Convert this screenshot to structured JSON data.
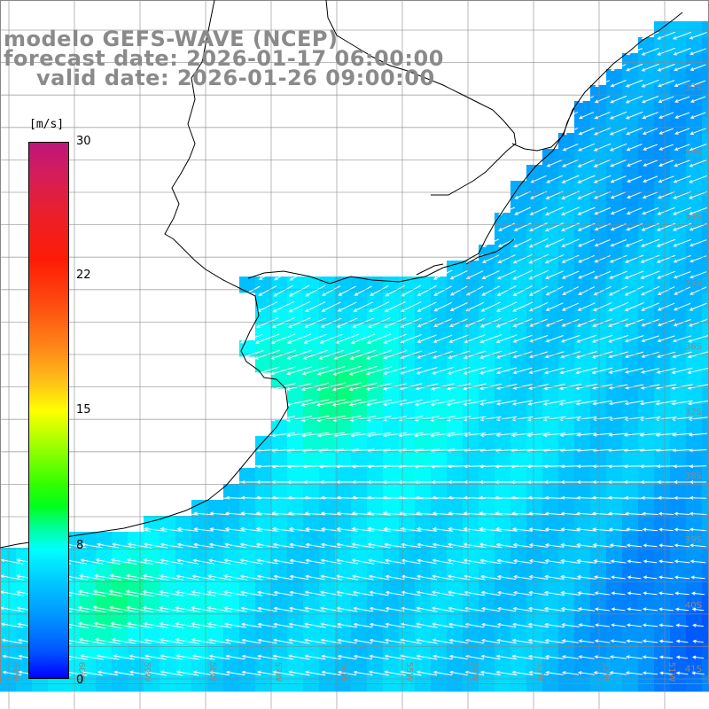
{
  "title": {
    "line1": "modelo GEFS-WAVE (NCEP)",
    "line2": "forecast date: 2026-01-17 06:00:00",
    "line3": "valid date: 2026-01-26 09:00:00"
  },
  "colorbar": {
    "unit": "[m/s]",
    "ticks": [
      "30",
      "22",
      "15",
      "8",
      "0"
    ]
  },
  "lat_labels": [
    "32S",
    "33S",
    "34S",
    "35S",
    "36S",
    "37S",
    "38S",
    "39S",
    "40S",
    "41S"
  ],
  "lon_labels": [
    "61W",
    "60W",
    "59W",
    "58W",
    "57W",
    "56W",
    "55W",
    "54W",
    "53W",
    "52W",
    "51W"
  ],
  "colors": {
    "land": "#ffffff",
    "coast": "#000000",
    "grid": "#888888",
    "arrow": "#ffffff",
    "title": "#8a8a8a"
  }
}
